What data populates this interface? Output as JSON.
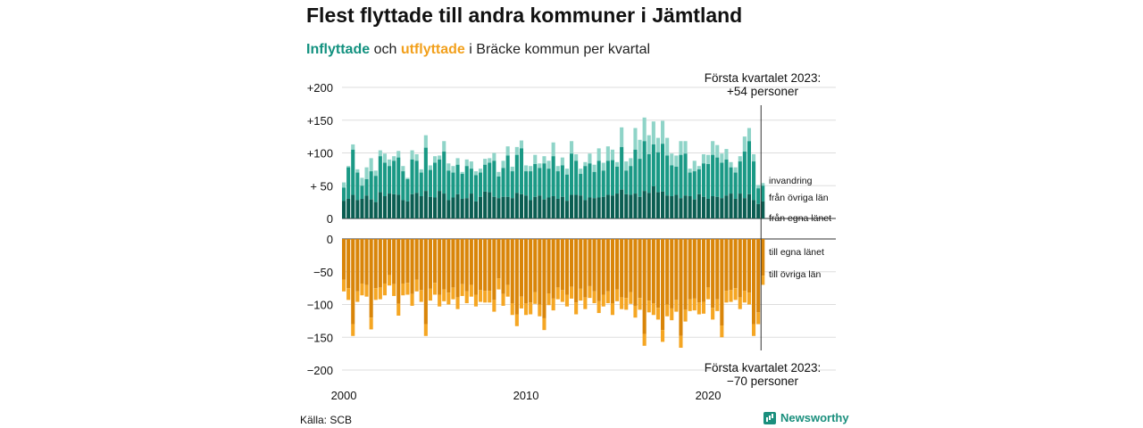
{
  "title": "Flest flyttade till andra kommuner i Jämtland",
  "subtitle": {
    "in_word": "Inflyttade",
    "and_word": "och",
    "out_word": "utflyttade",
    "rest": "i Bräcke kommun per kvartal"
  },
  "source": "Källa: SCB",
  "brand": "Newsworthy",
  "colors": {
    "in_local": "#0b5e52",
    "in_other": "#1a9985",
    "in_immig": "#8fd4c8",
    "out_local": "#d98509",
    "out_other": "#f5a623",
    "out_emig": "#fbd38d",
    "grid": "#dddddd",
    "axis": "#333333"
  },
  "chart_data": {
    "type": "bar",
    "stacked": true,
    "quarters_start": "2000-Q1",
    "quarters_end": "2023-Q1",
    "x_ticks": [
      "2000",
      "2010",
      "2020"
    ],
    "top_y_ticks": [
      "+200",
      "+150",
      "+100",
      "+ 50",
      "0"
    ],
    "bottom_y_ticks": [
      "0",
      "−50",
      "−100",
      "−150",
      "−200"
    ],
    "top_ylim": [
      0,
      200
    ],
    "bottom_ylim": [
      -200,
      0
    ],
    "grid": true,
    "inflow_labels": [
      "invandring",
      "från övriga län",
      "från egna länet"
    ],
    "outflow_labels": [
      "till egna länet",
      "till övriga län"
    ],
    "annotation_in": [
      "Första kvartalet 2023:",
      "+54 personer"
    ],
    "annotation_out": [
      "Första kvartalet 2023:",
      "−70 personer"
    ],
    "inflow_total": [
      55,
      80,
      113,
      75,
      62,
      78,
      92,
      73,
      104,
      99,
      90,
      95,
      103,
      80,
      62,
      104,
      98,
      75,
      127,
      81,
      95,
      96,
      118,
      84,
      80,
      92,
      71,
      90,
      87,
      72,
      76,
      91,
      92,
      100,
      71,
      88,
      110,
      79,
      109,
      119,
      81,
      80,
      97,
      84,
      95,
      88,
      116,
      80,
      93,
      76,
      118,
      98,
      76,
      86,
      99,
      82,
      107,
      85,
      110,
      105,
      86,
      139,
      87,
      92,
      138,
      120,
      154,
      127,
      148,
      123,
      149,
      123,
      99,
      96,
      118,
      118,
      76,
      88,
      80,
      98,
      97,
      118,
      112,
      99,
      106,
      86,
      78,
      95,
      125,
      138,
      98,
      51,
      54
    ],
    "inflow_other": [
      47,
      78,
      105,
      70,
      50,
      60,
      72,
      65,
      95,
      85,
      80,
      88,
      93,
      72,
      60,
      90,
      88,
      70,
      108,
      74,
      85,
      90,
      102,
      73,
      70,
      82,
      68,
      80,
      76,
      66,
      70,
      82,
      85,
      88,
      64,
      77,
      96,
      72,
      97,
      107,
      72,
      72,
      83,
      77,
      84,
      76,
      95,
      72,
      81,
      67,
      99,
      88,
      68,
      80,
      84,
      71,
      88,
      73,
      88,
      89,
      79,
      109,
      73,
      80,
      105,
      91,
      118,
      98,
      113,
      101,
      114,
      96,
      81,
      79,
      97,
      99,
      70,
      72,
      75,
      84,
      83,
      97,
      93,
      85,
      90,
      78,
      70,
      87,
      102,
      118,
      87,
      46,
      50
    ],
    "inflow_local": [
      27,
      30,
      36,
      28,
      30,
      35,
      29,
      25,
      40,
      34,
      38,
      37,
      36,
      28,
      26,
      37,
      39,
      34,
      42,
      33,
      32,
      42,
      38,
      28,
      32,
      37,
      30,
      31,
      38,
      26,
      33,
      41,
      40,
      33,
      31,
      33,
      33,
      31,
      39,
      37,
      35,
      28,
      33,
      35,
      29,
      32,
      34,
      30,
      33,
      27,
      36,
      36,
      35,
      28,
      32,
      31,
      32,
      33,
      36,
      35,
      38,
      44,
      37,
      36,
      38,
      33,
      42,
      39,
      49,
      40,
      41,
      35,
      34,
      36,
      31,
      35,
      34,
      29,
      37,
      33,
      30,
      34,
      33,
      31,
      35,
      38,
      30,
      38,
      31,
      37,
      28,
      22,
      26
    ],
    "outflow_total": [
      -80,
      -93,
      -148,
      -96,
      -86,
      -88,
      -138,
      -93,
      -92,
      -86,
      -71,
      -87,
      -117,
      -86,
      -85,
      -102,
      -80,
      -96,
      -148,
      -94,
      -85,
      -103,
      -95,
      -100,
      -92,
      -107,
      -87,
      -98,
      -88,
      -103,
      -96,
      -97,
      -97,
      -111,
      -77,
      -102,
      -88,
      -116,
      -133,
      -106,
      -116,
      -115,
      -99,
      -118,
      -139,
      -101,
      -109,
      -92,
      -96,
      -103,
      -91,
      -115,
      -94,
      -107,
      -90,
      -98,
      -113,
      -103,
      -98,
      -116,
      -95,
      -107,
      -108,
      -99,
      -120,
      -108,
      -163,
      -112,
      -116,
      -123,
      -157,
      -118,
      -124,
      -111,
      -166,
      -126,
      -110,
      -109,
      -115,
      -114,
      -92,
      -123,
      -110,
      -150,
      -97,
      -96,
      -93,
      -107,
      -97,
      -100,
      -148,
      -130,
      -70
    ],
    "outflow_local": [
      -62,
      -75,
      -130,
      -80,
      -68,
      -70,
      -120,
      -75,
      -74,
      -68,
      -55,
      -69,
      -99,
      -68,
      -67,
      -84,
      -62,
      -78,
      -130,
      -76,
      -67,
      -85,
      -77,
      -82,
      -74,
      -89,
      -69,
      -80,
      -70,
      -85,
      -78,
      -79,
      -79,
      -93,
      -60,
      -84,
      -70,
      -98,
      -115,
      -88,
      -98,
      -97,
      -81,
      -100,
      -121,
      -83,
      -91,
      -74,
      -78,
      -85,
      -73,
      -97,
      -76,
      -89,
      -72,
      -80,
      -95,
      -85,
      -80,
      -98,
      -77,
      -89,
      -90,
      -81,
      -102,
      -90,
      -145,
      -94,
      -98,
      -105,
      -139,
      -100,
      -106,
      -93,
      -148,
      -108,
      -92,
      -91,
      -97,
      -96,
      -74,
      -105,
      -92,
      -132,
      -79,
      -78,
      -75,
      -89,
      -79,
      -82,
      -130,
      -112,
      -56
    ]
  }
}
